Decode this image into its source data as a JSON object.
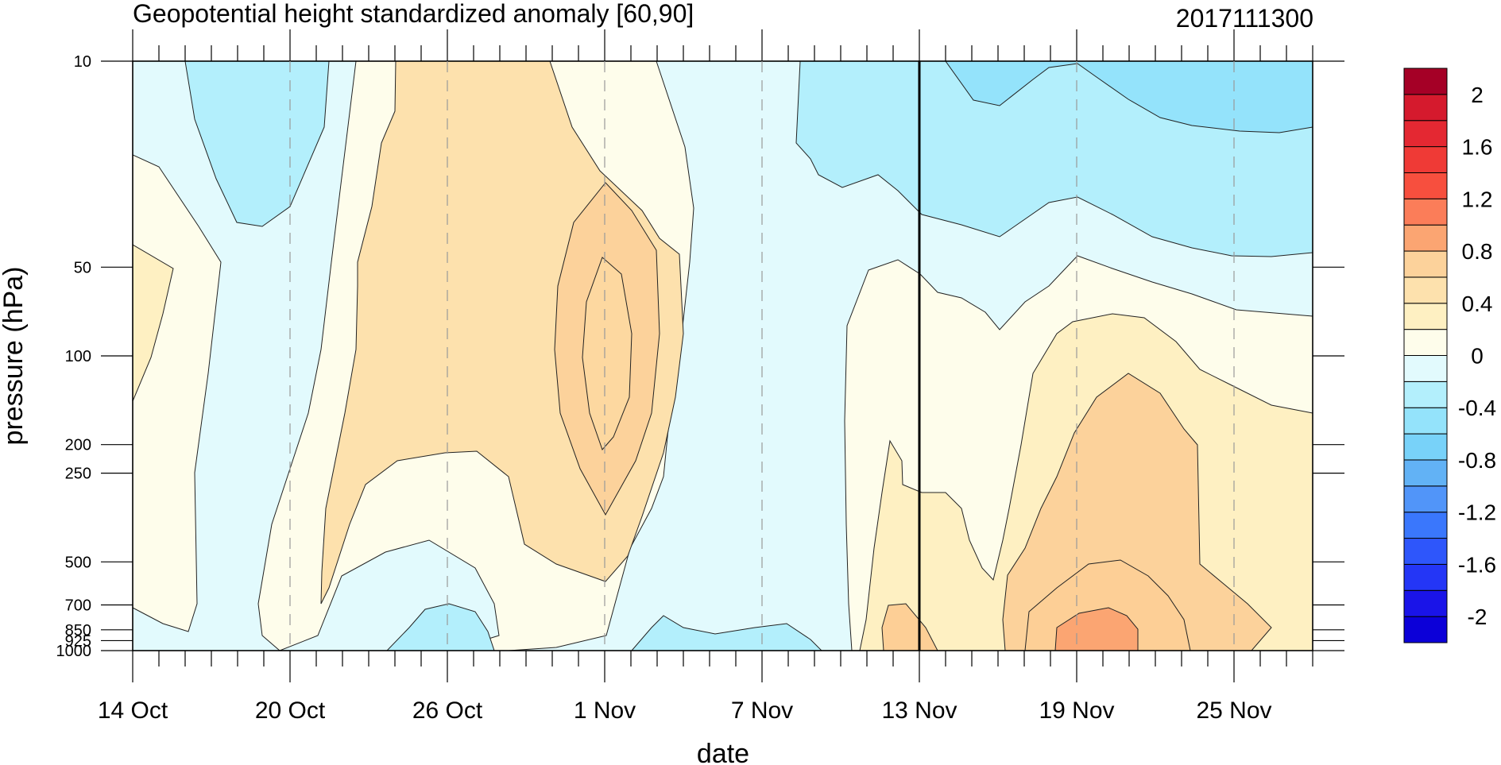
{
  "chart_data": {
    "type": "contour",
    "title": "Geopotential height standardized anomaly [60,90]",
    "date_label": "2017111300",
    "xlabel": "date",
    "ylabel": "pressure (hPa)",
    "y_scale": "log",
    "y_reversed": true,
    "ylim": [
      1000,
      10
    ],
    "xlim": [
      "2017-10-14",
      "2017-11-28"
    ],
    "x_ticks": [
      "14 Oct",
      "20 Oct",
      "26 Oct",
      "1 Nov",
      "7 Nov",
      "13 Nov",
      "19 Nov",
      "25 Nov"
    ],
    "x_tick_dates": [
      "2017-10-14",
      "2017-10-20",
      "2017-10-26",
      "2017-11-01",
      "2017-11-07",
      "2017-11-13",
      "2017-11-19",
      "2017-11-25"
    ],
    "y_ticks": [
      10,
      50,
      100,
      200,
      250,
      500,
      700,
      850,
      925,
      1000
    ],
    "y_tick_labels": [
      "10",
      "50",
      "100",
      "200",
      "250",
      "500",
      "700",
      "850",
      "925",
      "1000"
    ],
    "reference_line_date": "2017-11-13",
    "grid": "dashed vertical lines at labeled dates",
    "colorbar": {
      "placement": "right",
      "levels": [
        -2.2,
        -2.0,
        -1.8,
        -1.6,
        -1.4,
        -1.2,
        -1.0,
        -0.8,
        -0.6,
        -0.4,
        -0.2,
        0.0,
        0.2,
        0.4,
        0.6,
        0.8,
        1.0,
        1.2,
        1.4,
        1.6,
        1.8,
        2.0,
        2.2
      ],
      "colors": [
        "#0c00d8",
        "#1a14e8",
        "#2436f6",
        "#2e56fb",
        "#3a77fc",
        "#5195f9",
        "#62b2f5",
        "#78d2f9",
        "#94e3fb",
        "#b3effc",
        "#e2fafd",
        "#fefdeb",
        "#fef0c2",
        "#fde1ad",
        "#fcd29b",
        "#fba572",
        "#fb7d59",
        "#f74f3e",
        "#ef3a36",
        "#e42832",
        "#d51a2d",
        "#a50026"
      ],
      "labels": [
        "2",
        "1.6",
        "1.2",
        "0.8",
        "0.4",
        "0",
        "-0.4",
        "-0.8",
        "-1.2",
        "-1.6",
        "-2"
      ],
      "label_values": [
        2,
        1.6,
        1.2,
        0.8,
        0.4,
        0,
        -0.4,
        -0.8,
        -1.2,
        -1.6,
        -2
      ]
    },
    "region_values": {
      "background": -0.1,
      "positive_oct": 0.1,
      "warm_oct_mid": 0.3,
      "core_nov1": 0.5,
      "core_nov1_inner": 0.7,
      "negative_oct": -0.3,
      "negative_top_right": -0.5,
      "negative_top_right_core": -0.7,
      "positive_nov_lower": 0.1,
      "positive_nov_mid": 0.3,
      "positive_nov_core": 0.5,
      "positive_nov_inner": 0.7,
      "positive_nov_max": 0.9
    }
  }
}
